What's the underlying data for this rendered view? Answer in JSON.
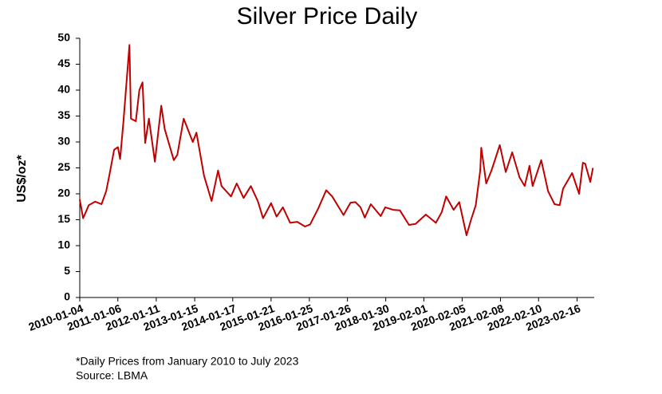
{
  "chart_data": {
    "type": "line",
    "title": "Silver Price Daily",
    "y_label": "US$/oz*",
    "footnotes": [
      "*Daily Prices from January 2010 to July 2023",
      "Source: LBMA"
    ],
    "xlim": [
      "2010-01-04",
      "2023-07-31"
    ],
    "xticks": [
      "2010-01-04",
      "2011-01-06",
      "2012-01-11",
      "2013-01-15",
      "2014-01-17",
      "2015-01-21",
      "2016-01-25",
      "2017-01-26",
      "2018-01-30",
      "2019-02-01",
      "2020-02-05",
      "2021-02-08",
      "2022-02-10",
      "2023-02-16"
    ],
    "ylim": [
      0,
      50
    ],
    "yticks": [
      0,
      5,
      10,
      15,
      20,
      25,
      30,
      35,
      40,
      45,
      50
    ],
    "x": [
      "2010-01-04",
      "2010-02-05",
      "2010-04-01",
      "2010-06-01",
      "2010-08-02",
      "2010-09-15",
      "2010-10-15",
      "2010-12-01",
      "2011-01-06",
      "2011-01-28",
      "2011-03-01",
      "2011-04-28",
      "2011-05-12",
      "2011-06-28",
      "2011-08-01",
      "2011-09-01",
      "2011-09-26",
      "2011-11-01",
      "2011-12-29",
      "2012-02-28",
      "2012-04-01",
      "2012-06-28",
      "2012-08-01",
      "2012-10-01",
      "2012-12-28",
      "2013-02-01",
      "2013-04-15",
      "2013-06-27",
      "2013-08-28",
      "2013-10-01",
      "2013-12-31",
      "2014-02-24",
      "2014-05-01",
      "2014-07-10",
      "2014-09-15",
      "2014-11-05",
      "2015-01-21",
      "2015-03-15",
      "2015-05-15",
      "2015-07-24",
      "2015-09-30",
      "2015-12-14",
      "2016-02-01",
      "2016-04-20",
      "2016-07-05",
      "2016-09-01",
      "2016-12-19",
      "2017-02-25",
      "2017-04-13",
      "2017-06-01",
      "2017-07-12",
      "2017-09-08",
      "2017-12-12",
      "2018-01-25",
      "2018-04-11",
      "2018-06-15",
      "2018-09-11",
      "2018-11-13",
      "2019-02-20",
      "2019-05-28",
      "2019-07-24",
      "2019-09-04",
      "2019-11-15",
      "2020-01-08",
      "2020-03-18",
      "2020-05-01",
      "2020-06-15",
      "2020-07-28",
      "2020-08-07",
      "2020-09-24",
      "2020-11-13",
      "2021-02-01",
      "2021-03-31",
      "2021-06-01",
      "2021-08-10",
      "2021-09-29",
      "2021-11-15",
      "2021-12-15",
      "2022-03-08",
      "2022-05-13",
      "2022-07-14",
      "2022-09-01",
      "2022-10-04",
      "2022-12-30",
      "2023-03-08",
      "2023-04-13",
      "2023-05-05",
      "2023-06-23",
      "2023-07-19"
    ],
    "series": [
      {
        "name": "Silver",
        "color": "#c00000",
        "values": [
          18.9,
          15.3,
          17.8,
          18.5,
          18.0,
          20.5,
          23.5,
          28.5,
          29.0,
          26.7,
          34.0,
          48.7,
          34.5,
          34.0,
          40.0,
          41.5,
          29.8,
          34.5,
          26.2,
          37.0,
          32.5,
          26.5,
          27.5,
          34.5,
          30.0,
          31.8,
          23.5,
          18.6,
          24.5,
          21.5,
          19.5,
          22.0,
          19.2,
          21.5,
          18.6,
          15.3,
          18.2,
          15.6,
          17.4,
          14.4,
          14.6,
          13.7,
          14.1,
          17.2,
          20.7,
          19.5,
          15.9,
          18.3,
          18.4,
          17.4,
          15.4,
          18.0,
          15.7,
          17.4,
          16.9,
          16.8,
          14.0,
          14.2,
          16.0,
          14.4,
          16.5,
          19.5,
          16.9,
          18.4,
          12.0,
          15.0,
          17.8,
          24.5,
          28.9,
          22.0,
          24.5,
          29.4,
          24.2,
          28.0,
          23.2,
          21.5,
          25.4,
          21.5,
          26.5,
          20.5,
          18.0,
          17.8,
          21.0,
          24.0,
          20.0,
          26.0,
          25.8,
          22.3,
          25.0
        ]
      }
    ]
  }
}
